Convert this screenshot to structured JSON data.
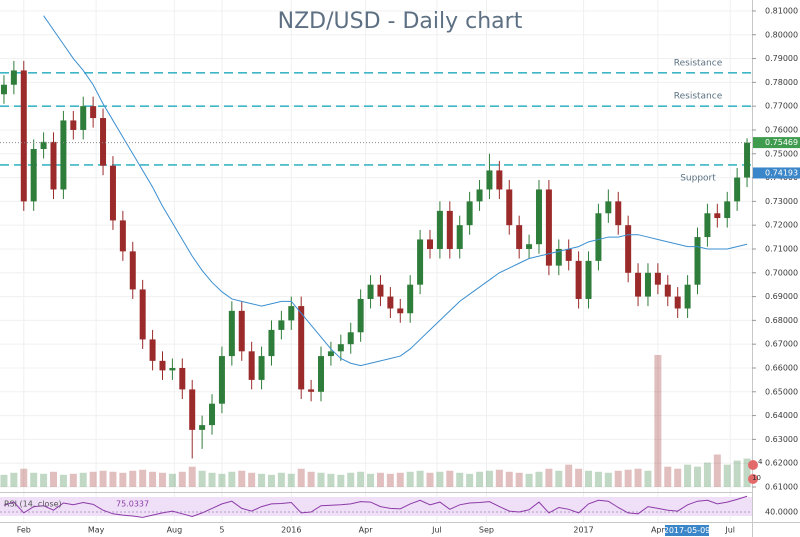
{
  "chart_data": {
    "type": "candlestick",
    "title": "NZD/USD - Daily chart",
    "xlim": [
      -0.4,
      75.5
    ],
    "xticks": [
      {
        "value": 2,
        "label": "Feb"
      },
      {
        "value": 9.3,
        "label": "May"
      },
      {
        "value": 17.2,
        "label": "Aug"
      },
      {
        "value": 22,
        "label": "5"
      },
      {
        "value": 29,
        "label": "2016"
      },
      {
        "value": 36.5,
        "label": "Apr"
      },
      {
        "value": 43.7,
        "label": "Jul"
      },
      {
        "value": 48.7,
        "label": "Sep"
      },
      {
        "value": 58.5,
        "label": "2017"
      },
      {
        "value": 66,
        "label": "Apr"
      },
      {
        "value": 73.3,
        "label": "Jul"
      }
    ],
    "ylim": [
      0.61,
      0.8146
    ],
    "yticks": [
      {
        "value": 0.61,
        "label": "0.61000"
      },
      {
        "value": 0.62,
        "label": "0.62000"
      },
      {
        "value": 0.63,
        "label": "0.63000"
      },
      {
        "value": 0.64,
        "label": "0.64000"
      },
      {
        "value": 0.65,
        "label": "0.65000"
      },
      {
        "value": 0.66,
        "label": "0.66000"
      },
      {
        "value": 0.67,
        "label": "0.67000"
      },
      {
        "value": 0.68,
        "label": "0.68000"
      },
      {
        "value": 0.69,
        "label": "0.69000"
      },
      {
        "value": 0.7,
        "label": "0.70000"
      },
      {
        "value": 0.71,
        "label": "0.71000"
      },
      {
        "value": 0.72,
        "label": "0.72000"
      },
      {
        "value": 0.73,
        "label": "0.73000"
      },
      {
        "value": 0.74,
        "label": "0.74000"
      },
      {
        "value": 0.75,
        "label": "0.75000"
      },
      {
        "value": 0.76,
        "label": "0.76000"
      },
      {
        "value": 0.77,
        "label": "0.77000"
      },
      {
        "value": 0.78,
        "label": "0.78000"
      },
      {
        "value": 0.79,
        "label": "0.79000"
      },
      {
        "value": 0.8,
        "label": "0.80000"
      },
      {
        "value": 0.81,
        "label": "0.81000"
      }
    ],
    "grid": true,
    "up_color": "#2f7d3a",
    "down_color": "#9b2a2a",
    "candles": [
      [
        0.775,
        0.783,
        0.771,
        0.779
      ],
      [
        0.779,
        0.789,
        0.775,
        0.785
      ],
      [
        0.785,
        0.789,
        0.726,
        0.73
      ],
      [
        0.73,
        0.756,
        0.726,
        0.752
      ],
      [
        0.752,
        0.759,
        0.748,
        0.755
      ],
      [
        0.755,
        0.759,
        0.731,
        0.735
      ],
      [
        0.735,
        0.768,
        0.731,
        0.764
      ],
      [
        0.764,
        0.768,
        0.756,
        0.76
      ],
      [
        0.76,
        0.774,
        0.756,
        0.77
      ],
      [
        0.77,
        0.774,
        0.761,
        0.765
      ],
      [
        0.765,
        0.769,
        0.741,
        0.745
      ],
      [
        0.745,
        0.749,
        0.718,
        0.722
      ],
      [
        0.722,
        0.726,
        0.705,
        0.709
      ],
      [
        0.709,
        0.713,
        0.689,
        0.693
      ],
      [
        0.693,
        0.697,
        0.668,
        0.672
      ],
      [
        0.672,
        0.676,
        0.659,
        0.663
      ],
      [
        0.663,
        0.667,
        0.655,
        0.659
      ],
      [
        0.659,
        0.664,
        0.655,
        0.66
      ],
      [
        0.66,
        0.664,
        0.647,
        0.651
      ],
      [
        0.651,
        0.655,
        0.622,
        0.634
      ],
      [
        0.634,
        0.64,
        0.626,
        0.636
      ],
      [
        0.636,
        0.649,
        0.632,
        0.645
      ],
      [
        0.645,
        0.669,
        0.641,
        0.665
      ],
      [
        0.665,
        0.688,
        0.661,
        0.684
      ],
      [
        0.684,
        0.688,
        0.663,
        0.667
      ],
      [
        0.667,
        0.671,
        0.651,
        0.655
      ],
      [
        0.655,
        0.669,
        0.651,
        0.665
      ],
      [
        0.665,
        0.68,
        0.661,
        0.676
      ],
      [
        0.676,
        0.684,
        0.672,
        0.68
      ],
      [
        0.68,
        0.69,
        0.676,
        0.686
      ],
      [
        0.686,
        0.69,
        0.647,
        0.651
      ],
      [
        0.651,
        0.655,
        0.646,
        0.65
      ],
      [
        0.65,
        0.669,
        0.646,
        0.665
      ],
      [
        0.665,
        0.671,
        0.661,
        0.667
      ],
      [
        0.667,
        0.674,
        0.663,
        0.67
      ],
      [
        0.67,
        0.679,
        0.666,
        0.675
      ],
      [
        0.675,
        0.693,
        0.671,
        0.689
      ],
      [
        0.689,
        0.699,
        0.685,
        0.695
      ],
      [
        0.695,
        0.699,
        0.686,
        0.69
      ],
      [
        0.69,
        0.694,
        0.681,
        0.685
      ],
      [
        0.685,
        0.689,
        0.679,
        0.683
      ],
      [
        0.683,
        0.699,
        0.679,
        0.695
      ],
      [
        0.695,
        0.718,
        0.691,
        0.714
      ],
      [
        0.714,
        0.718,
        0.706,
        0.71
      ],
      [
        0.71,
        0.73,
        0.706,
        0.726
      ],
      [
        0.726,
        0.73,
        0.706,
        0.71
      ],
      [
        0.71,
        0.724,
        0.706,
        0.72
      ],
      [
        0.72,
        0.734,
        0.716,
        0.73
      ],
      [
        0.73,
        0.739,
        0.726,
        0.735
      ],
      [
        0.735,
        0.75,
        0.731,
        0.743
      ],
      [
        0.743,
        0.747,
        0.731,
        0.735
      ],
      [
        0.735,
        0.739,
        0.716,
        0.72
      ],
      [
        0.72,
        0.724,
        0.706,
        0.71
      ],
      [
        0.71,
        0.716,
        0.706,
        0.712
      ],
      [
        0.712,
        0.739,
        0.708,
        0.735
      ],
      [
        0.735,
        0.739,
        0.699,
        0.703
      ],
      [
        0.703,
        0.714,
        0.699,
        0.71
      ],
      [
        0.71,
        0.714,
        0.701,
        0.705
      ],
      [
        0.705,
        0.709,
        0.685,
        0.689
      ],
      [
        0.689,
        0.709,
        0.685,
        0.705
      ],
      [
        0.705,
        0.729,
        0.701,
        0.725
      ],
      [
        0.725,
        0.735,
        0.721,
        0.73
      ],
      [
        0.73,
        0.734,
        0.716,
        0.72
      ],
      [
        0.72,
        0.724,
        0.696,
        0.7
      ],
      [
        0.7,
        0.704,
        0.686,
        0.69
      ],
      [
        0.69,
        0.704,
        0.686,
        0.7
      ],
      [
        0.7,
        0.704,
        0.691,
        0.695
      ],
      [
        0.695,
        0.699,
        0.686,
        0.69
      ],
      [
        0.69,
        0.694,
        0.681,
        0.685
      ],
      [
        0.685,
        0.699,
        0.681,
        0.695
      ],
      [
        0.695,
        0.719,
        0.691,
        0.715
      ],
      [
        0.715,
        0.729,
        0.711,
        0.725
      ],
      [
        0.725,
        0.729,
        0.719,
        0.723
      ],
      [
        0.723,
        0.734,
        0.719,
        0.73
      ],
      [
        0.73,
        0.744,
        0.726,
        0.74
      ],
      [
        0.74,
        0.7565,
        0.736,
        0.75469
      ]
    ],
    "moving_average": {
      "color": "#3b8fd0",
      "values": [
        null,
        null,
        null,
        null,
        0.808,
        0.802,
        0.796,
        0.79,
        0.785,
        0.779,
        0.771,
        0.764,
        0.757,
        0.75,
        0.743,
        0.736,
        0.728,
        0.721,
        0.714,
        0.707,
        0.701,
        0.696,
        0.692,
        0.689,
        0.688,
        0.687,
        0.686,
        0.687,
        0.688,
        0.688,
        0.683,
        0.678,
        0.673,
        0.668,
        0.664,
        0.662,
        0.661,
        0.662,
        0.663,
        0.664,
        0.665,
        0.668,
        0.672,
        0.676,
        0.68,
        0.684,
        0.688,
        0.691,
        0.694,
        0.697,
        0.7,
        0.702,
        0.704,
        0.706,
        0.707,
        0.708,
        0.709,
        0.71,
        0.711,
        0.713,
        0.714,
        0.715,
        0.715,
        0.716,
        0.716,
        0.715,
        0.714,
        0.713,
        0.712,
        0.711,
        0.711,
        0.71,
        0.71,
        0.71,
        0.711,
        0.712
      ]
    },
    "volume": [
      12,
      14,
      18,
      14,
      13,
      15,
      12,
      13,
      14,
      15,
      16,
      15,
      14,
      16,
      17,
      15,
      14,
      13,
      15,
      20,
      16,
      14,
      13,
      15,
      16,
      14,
      13,
      12,
      14,
      13,
      18,
      15,
      14,
      13,
      12,
      14,
      15,
      13,
      14,
      13,
      14,
      15,
      16,
      14,
      15,
      16,
      14,
      13,
      15,
      16,
      17,
      15,
      14,
      13,
      15,
      18,
      16,
      22,
      18,
      16,
      15,
      14,
      16,
      17,
      18,
      16,
      130,
      20,
      18,
      22,
      20,
      24,
      32,
      22,
      26,
      28
    ],
    "levels": [
      {
        "label": "Resistance",
        "value": 0.784
      },
      {
        "label": "Resistance",
        "value": 0.77
      },
      {
        "label": "Support",
        "value": 0.7453
      }
    ],
    "level_color": "#3fb6c6",
    "last_price": 0.75469,
    "marker_price": 0.74193,
    "rsi": {
      "label": "RSI (14, close)",
      "color": "#8c3aa8",
      "ylim": [
        20,
        80
      ],
      "yticks": [
        {
          "value": 40,
          "label": "40.0000"
        }
      ],
      "values": [
        55,
        62,
        38,
        52,
        54,
        44,
        60,
        56,
        61,
        57,
        44,
        36,
        33,
        31,
        28,
        33,
        38,
        42,
        36,
        30,
        38,
        48,
        58,
        64,
        48,
        42,
        52,
        58,
        59,
        61,
        38,
        40,
        54,
        55,
        56,
        58,
        63,
        62,
        52,
        48,
        47,
        58,
        66,
        56,
        62,
        46,
        56,
        60,
        61,
        63,
        52,
        42,
        40,
        45,
        62,
        38,
        50,
        46,
        38,
        58,
        66,
        64,
        50,
        38,
        36,
        52,
        48,
        44,
        42,
        56,
        64,
        66,
        58,
        62,
        68,
        75.0337
      ]
    },
    "date_label": "2017-05-09",
    "badges": [
      "4",
      "10"
    ]
  }
}
